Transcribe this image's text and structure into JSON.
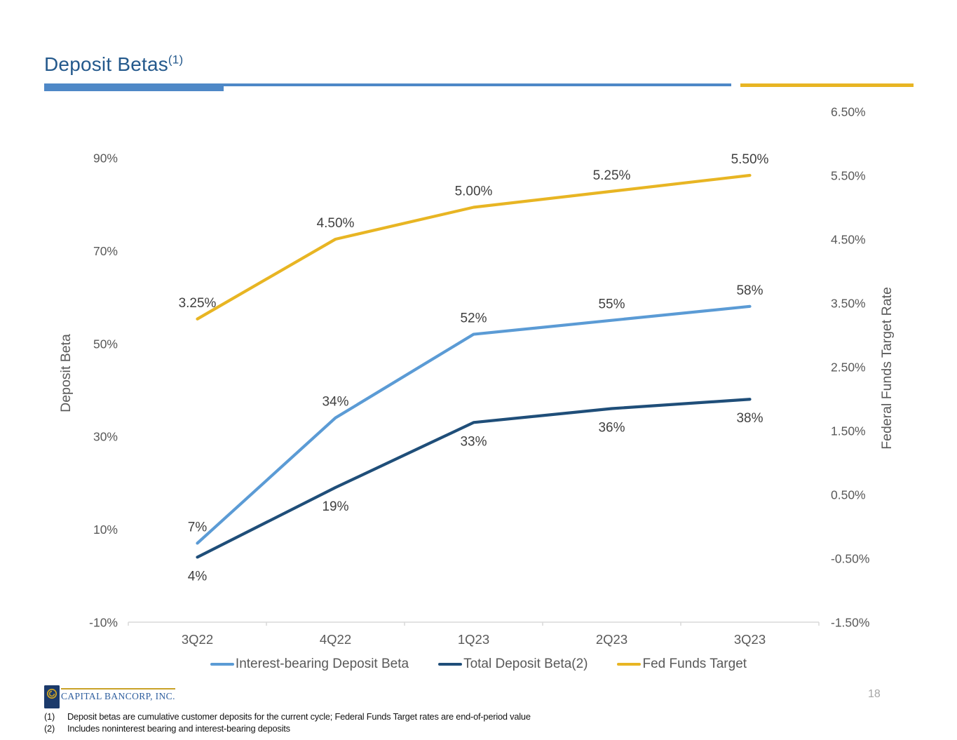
{
  "slide": {
    "title": "Deposit Betas",
    "title_superscript": "(1)",
    "page_number": "18",
    "footer_logo_text": "CAPITAL BANCORP, INC.",
    "footnotes": [
      {
        "marker": "(1)",
        "text": "Deposit betas are cumulative customer deposits for the current cycle; Federal Funds Target rates are end-of-period value"
      },
      {
        "marker": "(2)",
        "text": "Includes noninterest bearing and interest-bearing deposits"
      }
    ]
  },
  "colors": {
    "title_text": "#24598C",
    "accent_bar_blue": "#4E88C7",
    "accent_bar_gold": "#E8B523",
    "ib_beta": "#5B9BD5",
    "total_beta": "#1F4E79",
    "fed_funds": "#E8B523",
    "axis_text": "#595959",
    "data_label": "#404040",
    "axis_line": "#D9D9D9",
    "logo_navy": "#1B3A6B",
    "logo_gold": "#C9A227"
  },
  "chart_data": {
    "type": "line",
    "categories": [
      "3Q22",
      "4Q22",
      "1Q23",
      "2Q23",
      "3Q23"
    ],
    "series": [
      {
        "name": "Interest-bearing Deposit Beta",
        "axis": "left",
        "color_key": "ib_beta",
        "values": [
          7,
          34,
          52,
          55,
          58
        ],
        "labels": [
          "7%",
          "34%",
          "52%",
          "55%",
          "58%"
        ],
        "label_side": "above"
      },
      {
        "name": "Total Deposit Beta(2)",
        "axis": "left",
        "color_key": "total_beta",
        "values": [
          4,
          19,
          33,
          36,
          38
        ],
        "labels": [
          "4%",
          "19%",
          "33%",
          "36%",
          "38%"
        ],
        "label_side": "below"
      },
      {
        "name": "Fed Funds Target",
        "axis": "right",
        "color_key": "fed_funds",
        "values": [
          3.25,
          4.5,
          5.0,
          5.25,
          5.5
        ],
        "labels": [
          "3.25%",
          "4.50%",
          "5.00%",
          "5.25%",
          "5.50%"
        ],
        "label_side": "above"
      }
    ],
    "left_axis": {
      "title": "Deposit Beta",
      "min": -10,
      "max": 90,
      "tick_labels": [
        "90%",
        "70%",
        "50%",
        "30%",
        "10%",
        "-10%"
      ],
      "tick_values": [
        90,
        70,
        50,
        30,
        10,
        -10
      ]
    },
    "right_axis": {
      "title": "Federal Funds Target Rate",
      "min": -1.5,
      "max": 6.5,
      "tick_labels": [
        "6.50%",
        "5.50%",
        "4.50%",
        "3.50%",
        "2.50%",
        "1.50%",
        "0.50%",
        "-0.50%",
        "-1.50%"
      ],
      "tick_values": [
        6.5,
        5.5,
        4.5,
        3.5,
        2.5,
        1.5,
        0.5,
        -0.5,
        -1.5
      ]
    },
    "legend": [
      "Interest-bearing Deposit Beta",
      "Total Deposit Beta(2)",
      "Fed Funds Target"
    ],
    "grid": false,
    "legend_position": "bottom"
  }
}
